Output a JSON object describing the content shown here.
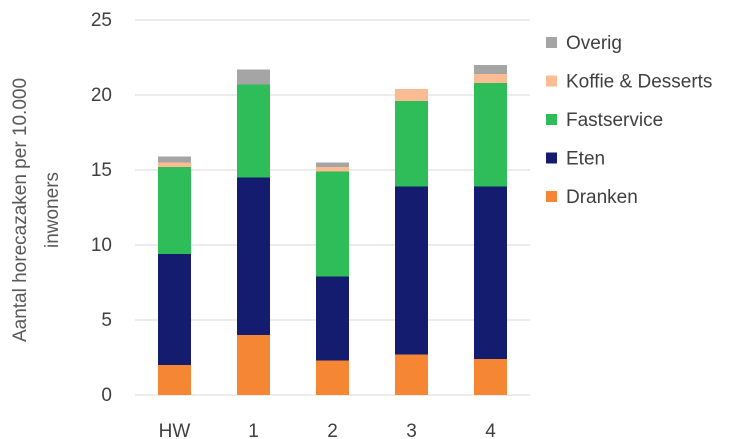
{
  "chart_data": {
    "type": "bar",
    "stacked": true,
    "categories": [
      "HW",
      "1",
      "2",
      "3",
      "4"
    ],
    "series": [
      {
        "name": "Dranken",
        "color": "#F58634",
        "values": [
          2.0,
          4.0,
          2.3,
          2.7,
          2.4
        ]
      },
      {
        "name": "Eten",
        "color": "#131C6E",
        "values": [
          7.4,
          10.5,
          5.6,
          11.2,
          11.5
        ]
      },
      {
        "name": "Fastservice",
        "color": "#2EBD59",
        "values": [
          5.8,
          6.2,
          7.0,
          5.7,
          6.9
        ]
      },
      {
        "name": "Koffie & Desserts",
        "color": "#FBBC93",
        "values": [
          0.3,
          0.0,
          0.3,
          0.8,
          0.6
        ]
      },
      {
        "name": "Overig",
        "color": "#A5A5A5",
        "values": [
          0.4,
          1.0,
          0.3,
          0.0,
          0.6
        ]
      }
    ],
    "ylabel_lines": [
      "Aantal horecazaken per 10.000",
      "inwoners"
    ],
    "ylim": [
      0,
      25
    ],
    "yticks": [
      0,
      5,
      10,
      15,
      20,
      25
    ],
    "grid": true,
    "legend_position": "right"
  }
}
